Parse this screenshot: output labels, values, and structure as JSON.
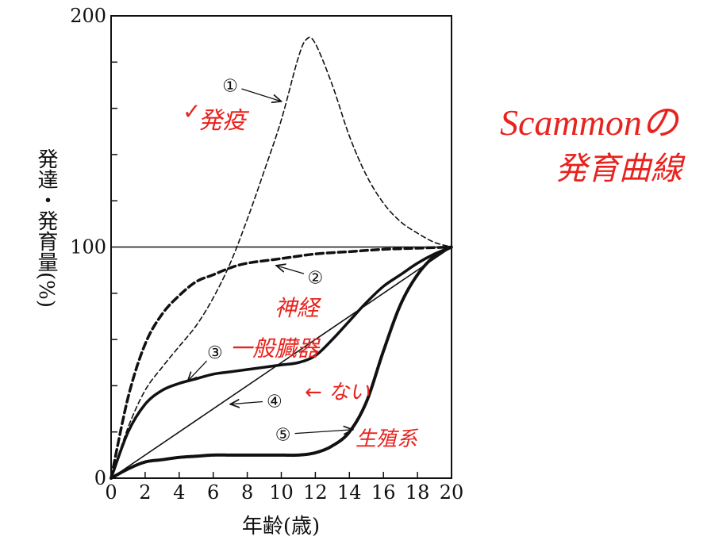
{
  "chart_data": {
    "type": "line",
    "xlabel": "年齢(歳)",
    "ylabel": "発達・発育量(%)",
    "xlim": [
      0,
      20
    ],
    "ylim": [
      0,
      200
    ],
    "x_ticks": [
      "0",
      "2",
      "4",
      "6",
      "8",
      "10",
      "12",
      "14",
      "16",
      "18",
      "20"
    ],
    "y_ticks": [
      "0",
      "100",
      "200"
    ],
    "reference_line": 100,
    "series": [
      {
        "marker": "①",
        "style": "dashed",
        "x": [
          0,
          1,
          2,
          3,
          4,
          5,
          6,
          7,
          8,
          9,
          10,
          11,
          11.5,
          12,
          13,
          14,
          15,
          16,
          17,
          18,
          19,
          20
        ],
        "y": [
          0,
          22,
          38,
          48,
          57,
          66,
          78,
          93,
          112,
          133,
          155,
          182,
          190,
          188,
          170,
          148,
          131,
          119,
          111,
          106,
          102,
          100
        ]
      },
      {
        "marker": "②",
        "style": "bold-dashed",
        "x": [
          0,
          1,
          2,
          3,
          4,
          5,
          6,
          7,
          8,
          10,
          12,
          14,
          16,
          18,
          20
        ],
        "y": [
          0,
          35,
          58,
          71,
          79,
          85,
          88,
          91,
          93,
          95,
          97,
          98,
          99,
          99.5,
          100
        ]
      },
      {
        "marker": "③",
        "style": "bold-solid",
        "x": [
          0,
          1,
          2,
          3,
          4,
          5,
          6,
          7,
          8,
          9,
          10,
          11,
          12,
          13,
          14,
          15,
          16,
          17,
          18,
          19,
          20
        ],
        "y": [
          0,
          20,
          32,
          38,
          41,
          43,
          45,
          46,
          47,
          48,
          49,
          50,
          53,
          60,
          68,
          76,
          83,
          88,
          93,
          97,
          100
        ]
      },
      {
        "marker": "④",
        "style": "solid",
        "x": [
          0,
          20
        ],
        "y": [
          0,
          100
        ]
      },
      {
        "marker": "⑤",
        "style": "dotted-bold",
        "x": [
          0,
          1,
          2,
          3,
          4,
          5,
          6,
          7,
          8,
          9,
          10,
          11,
          12,
          13,
          14,
          15,
          16,
          17,
          18,
          19,
          20
        ],
        "y": [
          0,
          4,
          7,
          8,
          9,
          9.5,
          10,
          10,
          10,
          10,
          10,
          10,
          11,
          14,
          20,
          33,
          55,
          75,
          88,
          96,
          100
        ]
      }
    ],
    "markers": [
      "①",
      "②",
      "③",
      "④",
      "⑤"
    ]
  },
  "annotations": {
    "a1": "発疫",
    "a2": "神経",
    "a3": "一般臓器",
    "a4": "← ない",
    "a5": "生殖系",
    "title_line1": "Scammonの",
    "title_line2": "発育曲線",
    "check": "✓"
  },
  "colors": {
    "ink": "#111111",
    "handwriting": "#e8231e"
  }
}
